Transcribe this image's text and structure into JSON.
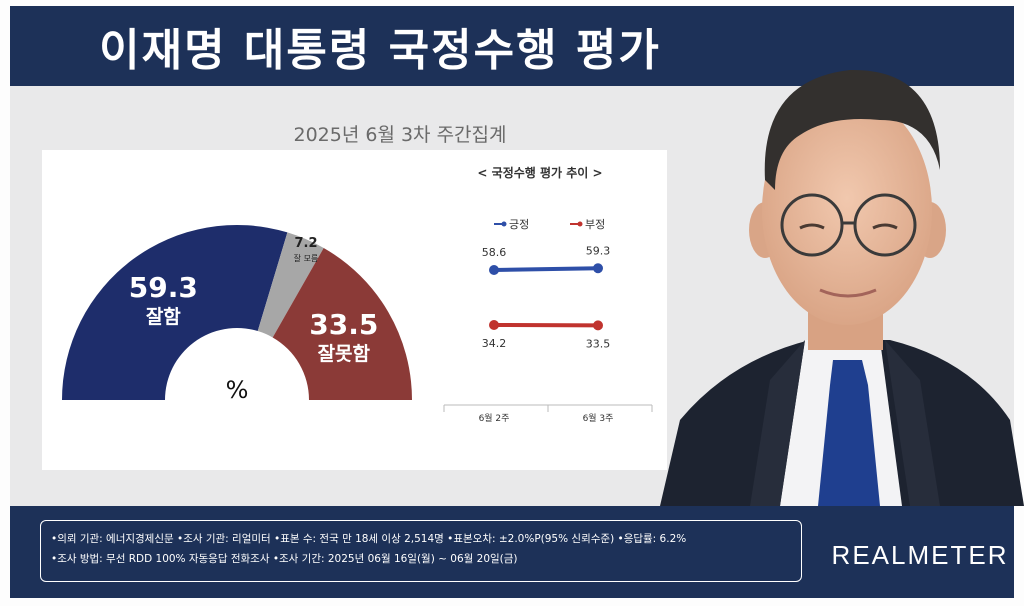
{
  "header": {
    "title": "이재명 대통령 국정수행 평가"
  },
  "subtitle": "2025년 6월 3차 주간집계",
  "colors": {
    "positive": "#1e2d6b",
    "negative": "#8b3a37",
    "unknown": "#a7a7a7",
    "title_bg": "#1d3158",
    "trend_pos": "#2e4fa8",
    "trend_neg": "#c0332e"
  },
  "chart_data": [
    {
      "type": "pie",
      "subtype": "half-donut",
      "unit_label": "%",
      "slices": [
        {
          "label": "잘함",
          "value": 59.3,
          "display": "59.3"
        },
        {
          "label": "잘 모름",
          "value": 7.2,
          "display": "7.2"
        },
        {
          "label": "잘못함",
          "value": 33.5,
          "display": "33.5"
        }
      ]
    },
    {
      "type": "line",
      "title": "< 국정수행 평가 추이 >",
      "categories": [
        "6월 2주",
        "6월 3주"
      ],
      "series": [
        {
          "name": "긍정",
          "values": [
            58.6,
            59.3
          ],
          "labels": [
            "58.6",
            "59.3"
          ]
        },
        {
          "name": "부정",
          "values": [
            34.2,
            33.5
          ],
          "labels": [
            "34.2",
            "33.5"
          ]
        }
      ]
    }
  ],
  "footer": {
    "line1": "•의뢰 기관: 에너지경제신문 •조사 기관: 리얼미터 •표본 수: 전국 만 18세 이상 2,514명 •표본오차: ±2.0%P(95% 신뢰수준) •응답률: 6.2%",
    "line2": "•조사 방법: 무선 RDD 100% 자동응답 전화조사 •조사 기간: 2025년 06월 16일(월) ~ 06월 20일(금)"
  },
  "brand": "REALMETER"
}
